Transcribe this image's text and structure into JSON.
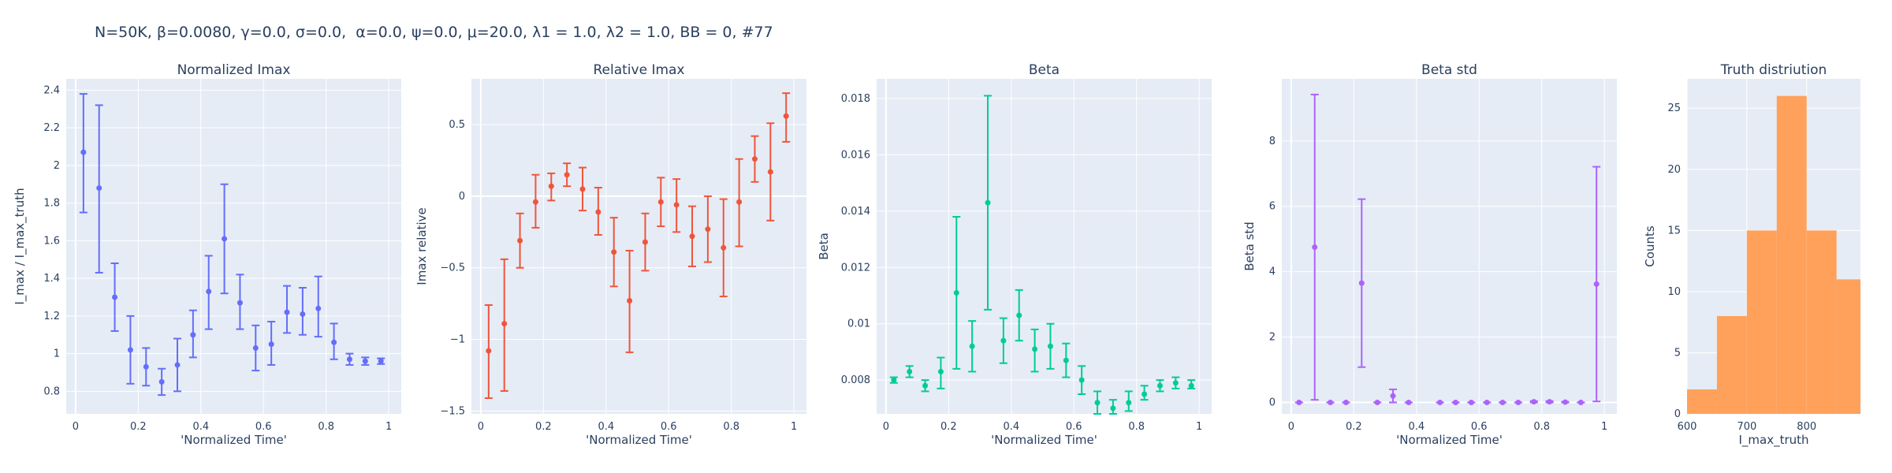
{
  "figure_title": "N=50K, β=0.0080, γ=0.0, σ=0.0,  α=0.0, ψ=0.0, μ=20.0, λ1 = 1.0, λ2 = 1.0, BB = 0, #77",
  "colors": {
    "plot_bg": "#E5ECF6",
    "grid": "#ffffff",
    "text": "#2a3f5f"
  },
  "chart_data": [
    {
      "type": "scatter",
      "title": "Normalized Imax",
      "xlabel": "'Normalized Time'",
      "ylabel": "I_max / I_max_truth",
      "color": "#636EFA",
      "xlim": [
        -0.03,
        1.04
      ],
      "ylim": [
        0.68,
        2.46
      ],
      "xticks": [
        0,
        0.2,
        0.4,
        0.6,
        0.8,
        1
      ],
      "xtick_labels": [
        "0",
        "0.2",
        "0.4",
        "0.6",
        "0.8",
        "1"
      ],
      "yticks": [
        0.8,
        1,
        1.2,
        1.4,
        1.6,
        1.8,
        2,
        2.2,
        2.4
      ],
      "ytick_labels": [
        "0.8",
        "1",
        "1.2",
        "1.4",
        "1.6",
        "1.8",
        "2",
        "2.2",
        "2.4"
      ],
      "x": [
        0.025,
        0.075,
        0.125,
        0.175,
        0.225,
        0.275,
        0.325,
        0.375,
        0.425,
        0.475,
        0.525,
        0.575,
        0.625,
        0.675,
        0.725,
        0.775,
        0.825,
        0.875,
        0.925,
        0.975
      ],
      "y": [
        2.07,
        1.88,
        1.3,
        1.02,
        0.93,
        0.85,
        0.94,
        1.1,
        1.33,
        1.61,
        1.27,
        1.03,
        1.05,
        1.22,
        1.21,
        1.24,
        1.06,
        0.97,
        0.96,
        0.96
      ],
      "y_low": [
        1.75,
        1.43,
        1.12,
        0.84,
        0.83,
        0.78,
        0.8,
        0.98,
        1.13,
        1.32,
        1.13,
        0.91,
        0.94,
        1.11,
        1.1,
        1.09,
        0.97,
        0.94,
        0.94,
        0.945
      ],
      "y_high": [
        2.38,
        2.32,
        1.48,
        1.2,
        1.03,
        0.92,
        1.08,
        1.23,
        1.52,
        1.9,
        1.42,
        1.15,
        1.17,
        1.36,
        1.35,
        1.41,
        1.16,
        1.0,
        0.98,
        0.975
      ]
    },
    {
      "type": "scatter",
      "title": "Relative Imax",
      "xlabel": "'Normalized Time'",
      "ylabel": "Imax relative",
      "color": "#EF553B",
      "xlim": [
        -0.03,
        1.04
      ],
      "ylim": [
        -1.52,
        0.82
      ],
      "xticks": [
        0,
        0.2,
        0.4,
        0.6,
        0.8,
        1
      ],
      "xtick_labels": [
        "0",
        "0.2",
        "0.4",
        "0.6",
        "0.8",
        "1"
      ],
      "yticks": [
        -1.5,
        -1,
        -0.5,
        0,
        0.5
      ],
      "ytick_labels": [
        "−1.5",
        "−1",
        "−0.5",
        "0",
        "0.5"
      ],
      "x": [
        0.025,
        0.075,
        0.125,
        0.175,
        0.225,
        0.275,
        0.325,
        0.375,
        0.425,
        0.475,
        0.525,
        0.575,
        0.625,
        0.675,
        0.725,
        0.775,
        0.825,
        0.875,
        0.925,
        0.975
      ],
      "y": [
        -1.08,
        -0.89,
        -0.31,
        -0.04,
        0.07,
        0.15,
        0.05,
        -0.11,
        -0.39,
        -0.73,
        -0.32,
        -0.04,
        -0.06,
        -0.28,
        -0.23,
        -0.36,
        -0.04,
        0.26,
        0.17,
        0.56
      ],
      "y_low": [
        -1.41,
        -1.36,
        -0.5,
        -0.22,
        -0.03,
        0.07,
        -0.1,
        -0.27,
        -0.63,
        -1.09,
        -0.52,
        -0.21,
        -0.25,
        -0.49,
        -0.46,
        -0.7,
        -0.35,
        0.1,
        -0.17,
        0.38
      ],
      "y_high": [
        -0.76,
        -0.44,
        -0.12,
        0.15,
        0.16,
        0.23,
        0.2,
        0.06,
        -0.15,
        -0.38,
        -0.12,
        0.13,
        0.12,
        -0.07,
        0.0,
        -0.02,
        0.26,
        0.42,
        0.51,
        0.72
      ]
    },
    {
      "type": "scatter",
      "title": "Beta",
      "xlabel": "'Normalized Time'",
      "ylabel": "Beta",
      "color": "#00CC96",
      "xlim": [
        -0.03,
        1.04
      ],
      "ylim": [
        0.0068,
        0.0187
      ],
      "xticks": [
        0,
        0.2,
        0.4,
        0.6,
        0.8,
        1
      ],
      "xtick_labels": [
        "0",
        "0.2",
        "0.4",
        "0.6",
        "0.8",
        "1"
      ],
      "yticks": [
        0.008,
        0.01,
        0.012,
        0.014,
        0.016,
        0.018
      ],
      "ytick_labels": [
        "0.008",
        "0.01",
        "0.012",
        "0.014",
        "0.016",
        "0.018"
      ],
      "x": [
        0.025,
        0.075,
        0.125,
        0.175,
        0.225,
        0.275,
        0.325,
        0.375,
        0.425,
        0.475,
        0.525,
        0.575,
        0.625,
        0.675,
        0.725,
        0.775,
        0.825,
        0.875,
        0.925,
        0.975
      ],
      "y": [
        0.008,
        0.0083,
        0.0078,
        0.0083,
        0.0111,
        0.0092,
        0.0143,
        0.0094,
        0.0103,
        0.0091,
        0.0092,
        0.0087,
        0.008,
        0.0072,
        0.007,
        0.0072,
        0.0075,
        0.0078,
        0.0079,
        0.0078
      ],
      "y_low": [
        0.0079,
        0.0081,
        0.0076,
        0.0077,
        0.0084,
        0.0083,
        0.0105,
        0.0086,
        0.0094,
        0.0083,
        0.0084,
        0.0081,
        0.0075,
        0.0068,
        0.0068,
        0.0069,
        0.0073,
        0.0076,
        0.0077,
        0.0077
      ],
      "y_high": [
        0.0081,
        0.0085,
        0.008,
        0.0088,
        0.0138,
        0.0101,
        0.0181,
        0.0102,
        0.0112,
        0.0098,
        0.01,
        0.0093,
        0.0085,
        0.0076,
        0.0073,
        0.0076,
        0.0078,
        0.008,
        0.0081,
        0.008
      ]
    },
    {
      "type": "scatter",
      "title": "Beta std",
      "xlabel": "'Normalized Time'",
      "ylabel": "Beta std",
      "color": "#AB63FA",
      "xlim": [
        -0.03,
        1.04
      ],
      "ylim": [
        -0.35,
        9.9
      ],
      "xticks": [
        0,
        0.2,
        0.4,
        0.6,
        0.8,
        1
      ],
      "xtick_labels": [
        "0",
        "0.2",
        "0.4",
        "0.6",
        "0.8",
        "1"
      ],
      "yticks": [
        0,
        2,
        4,
        6,
        8
      ],
      "ytick_labels": [
        "0",
        "2",
        "4",
        "6",
        "8"
      ],
      "x": [
        0.025,
        0.075,
        0.125,
        0.175,
        0.225,
        0.275,
        0.325,
        0.375,
        0.475,
        0.525,
        0.575,
        0.625,
        0.675,
        0.725,
        0.775,
        0.825,
        0.875,
        0.925,
        0.975
      ],
      "y": [
        0.0,
        4.75,
        0.0,
        0.0,
        3.65,
        0.0,
        0.2,
        0.0,
        0.0,
        0.0,
        0.0,
        0.0,
        0.0,
        0.0,
        0.02,
        0.02,
        0.01,
        0.0,
        3.62
      ],
      "y_low": [
        0.0,
        0.08,
        0.0,
        0.0,
        1.08,
        0.0,
        0.0,
        0.0,
        0.0,
        0.0,
        0.0,
        0.0,
        0.0,
        0.0,
        0.0,
        0.0,
        0.0,
        0.0,
        0.03
      ],
      "y_high": [
        0.0,
        9.42,
        0.0,
        0.0,
        6.22,
        0.0,
        0.4,
        0.0,
        0.0,
        0.0,
        0.0,
        0.0,
        0.0,
        0.0,
        0.04,
        0.04,
        0.02,
        0.0,
        7.21
      ]
    },
    {
      "type": "bar",
      "subtype": "histogram",
      "title": "Truth distriution",
      "xlabel": "I_max_truth",
      "ylabel": "Counts",
      "color": "#FFA15A",
      "xlim": [
        600,
        890
      ],
      "ylim": [
        0,
        27.4
      ],
      "xticks": [
        600,
        700,
        800
      ],
      "xtick_labels": [
        "600",
        "700",
        "800"
      ],
      "yticks": [
        0,
        5,
        10,
        15,
        20,
        25
      ],
      "ytick_labels": [
        "0",
        "5",
        "10",
        "15",
        "20",
        "25"
      ],
      "bin_edges": [
        600,
        650,
        700,
        750,
        800,
        850,
        890
      ],
      "values": [
        2,
        8,
        15,
        26,
        15,
        11
      ]
    }
  ]
}
